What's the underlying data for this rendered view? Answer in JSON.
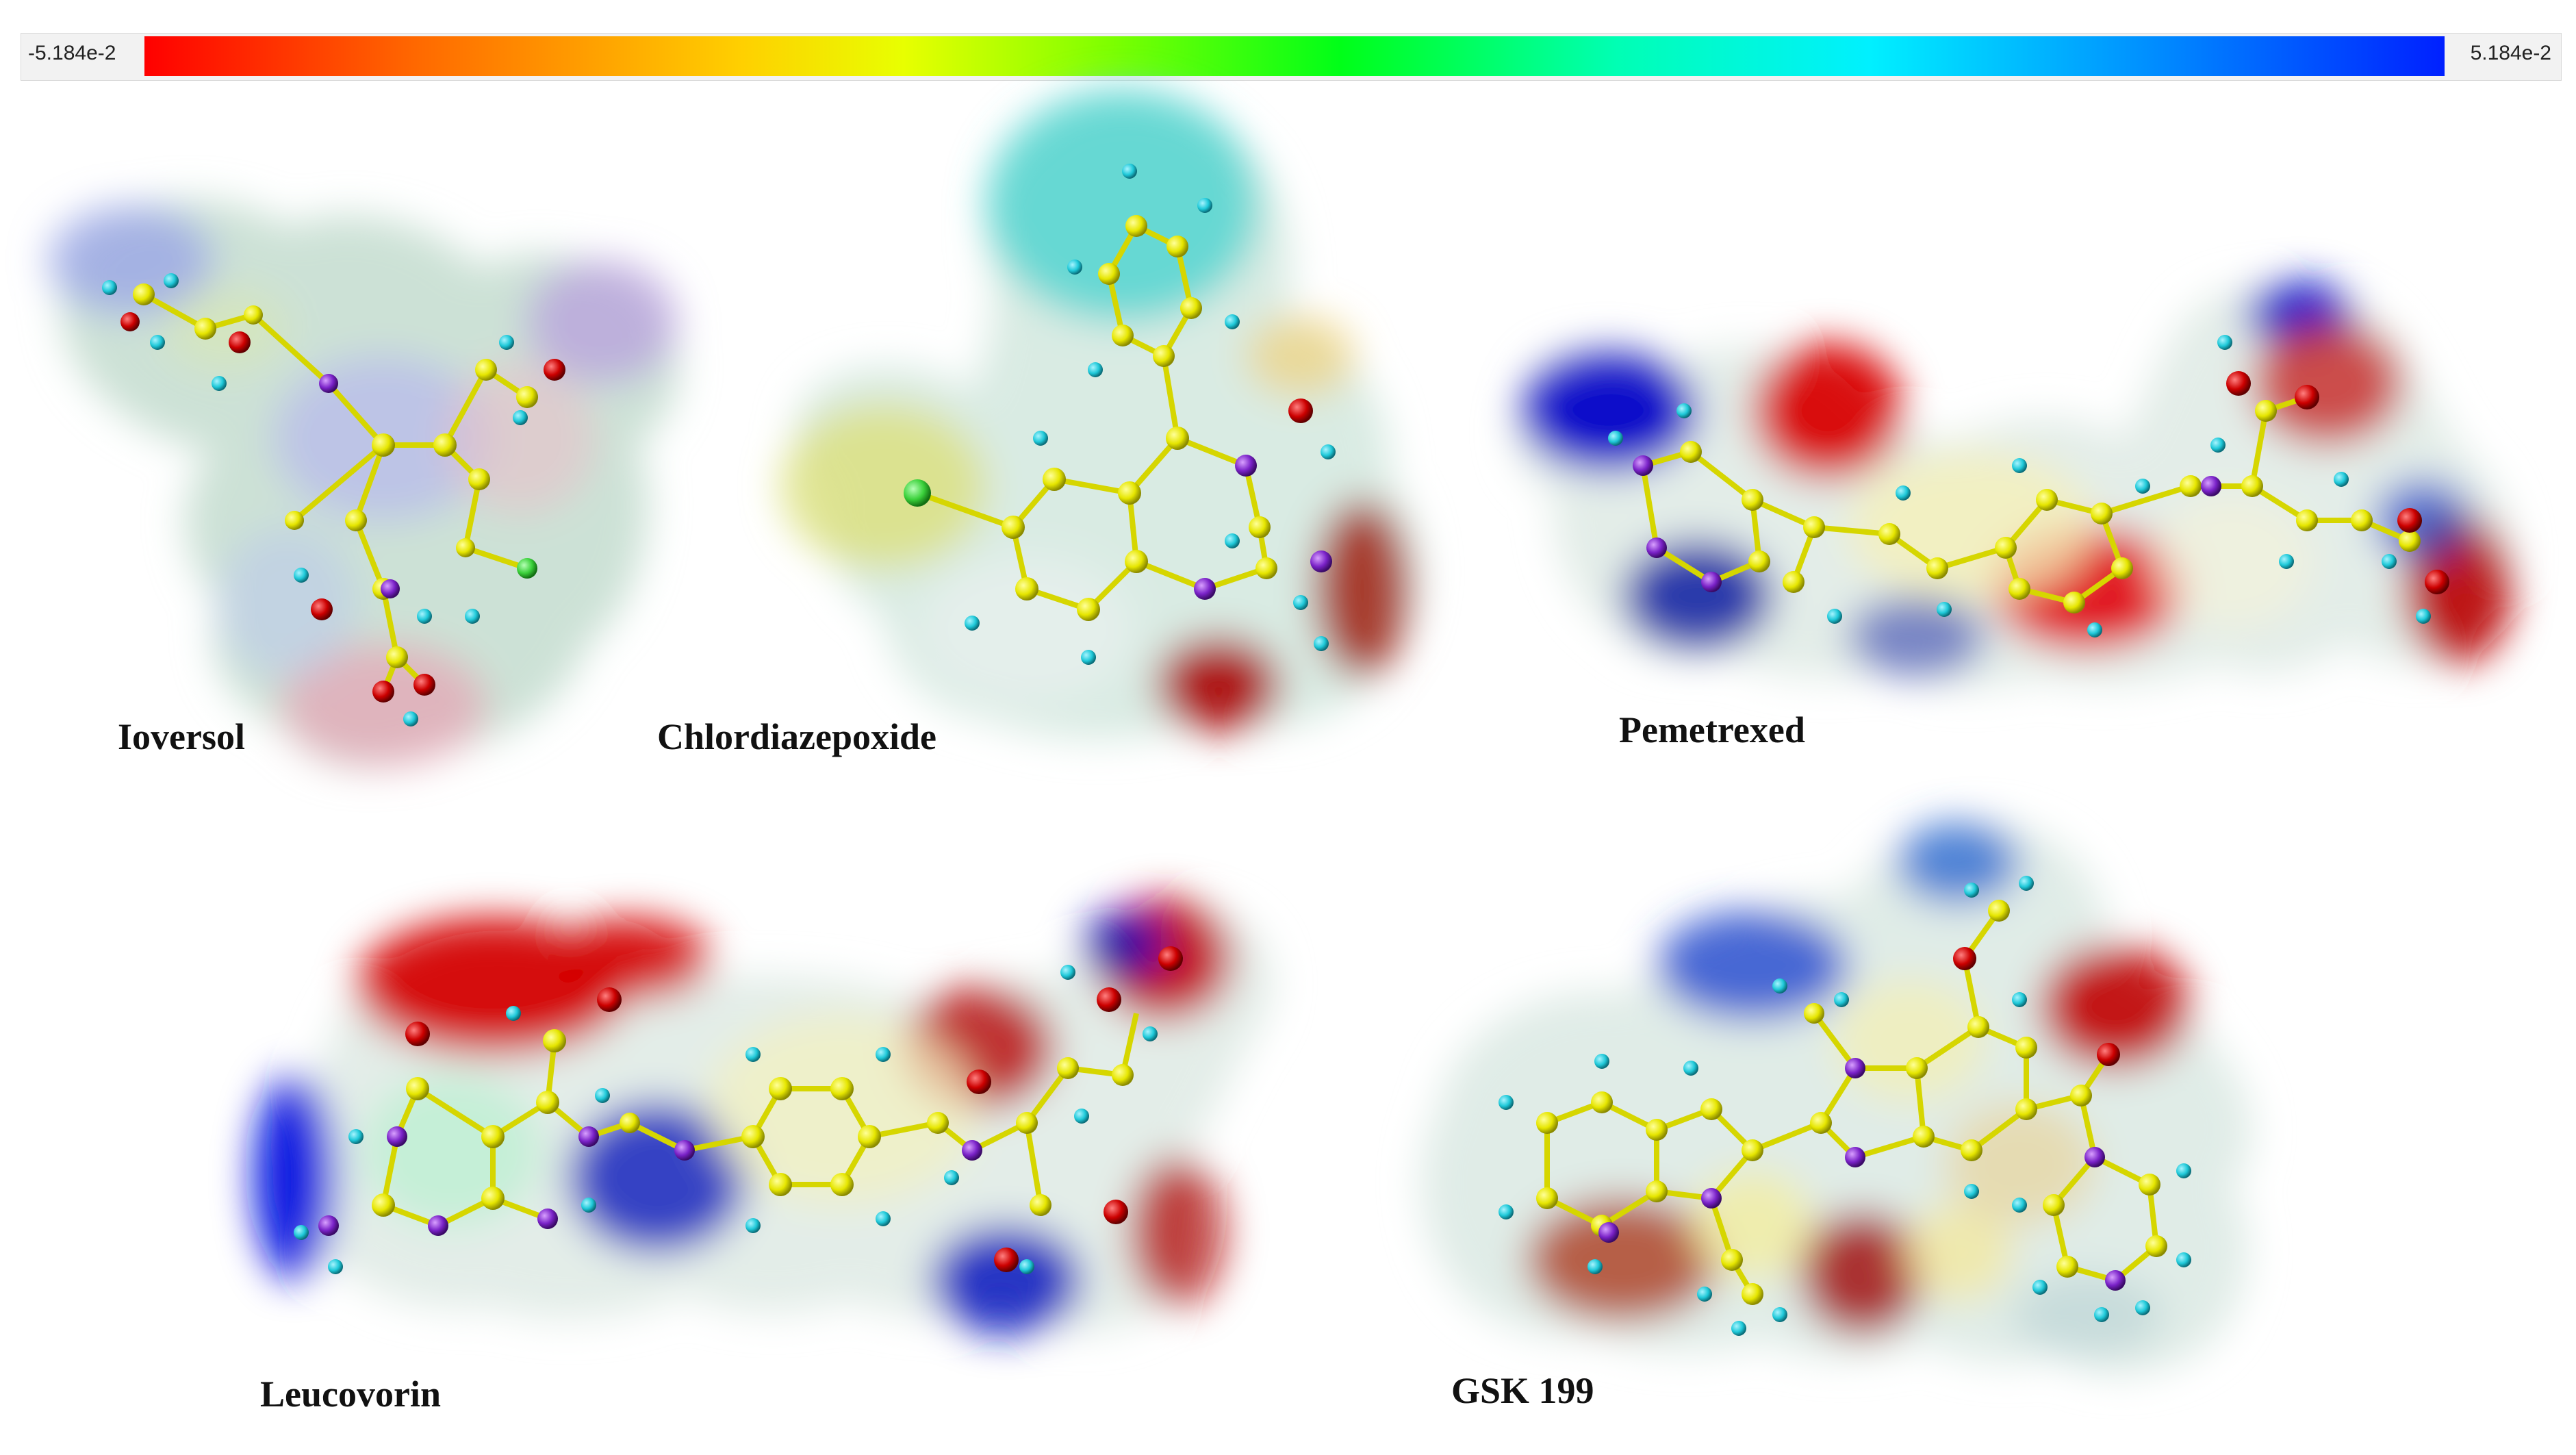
{
  "color_scale": {
    "min_label": "-5.184e-2",
    "max_label": "5.184e-2",
    "gradient_colors": [
      "#ff0000",
      "#ffd000",
      "#7dff00",
      "#00ff18",
      "#00f0ff",
      "#0020ff"
    ]
  },
  "molecules": {
    "ioversol": {
      "name": "Ioversol"
    },
    "chlordiazepoxide": {
      "name": "Chlordiazepoxide"
    },
    "pemetrexed": {
      "name": "Pemetrexed"
    },
    "leucovorin": {
      "name": "Leucovorin"
    },
    "gsk199": {
      "name": "GSK 199"
    }
  },
  "colors": {
    "carbon_atom": "#e6e600",
    "hydrogen_atom": "#1fc9d9",
    "oxygen_atom": "#cc0000",
    "nitrogen_atom": "#7a22c8",
    "chlorine_atom": "#3bd13b",
    "negative_potential": "#d40000",
    "positive_potential": "#0010d0",
    "neutral_surface": "#e9f2ee"
  }
}
